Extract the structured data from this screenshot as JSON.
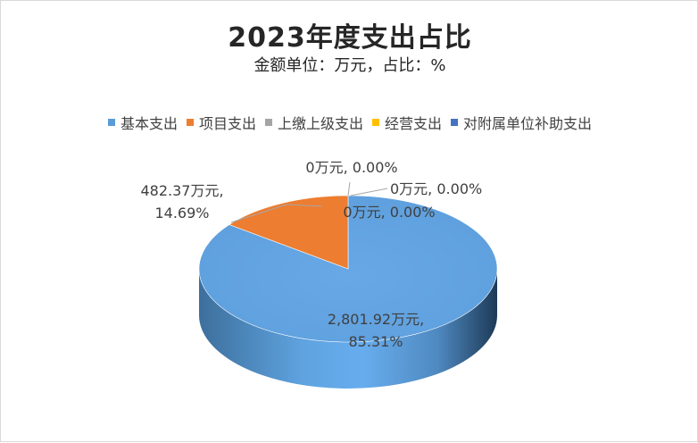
{
  "chart_data": {
    "type": "pie",
    "title": "2023年度支出占比",
    "subtitle": "金额单位：万元，占比：%",
    "legend_position": "top",
    "series": [
      {
        "name": "基本支出",
        "value": 2801.92,
        "label_value": "2,801.92万元,",
        "label_pct": "85.31%",
        "color": "#5b9bd5"
      },
      {
        "name": "项目支出",
        "value": 482.37,
        "label_value": "482.37万元,",
        "label_pct": "14.69%",
        "color": "#ed7d31"
      },
      {
        "name": "上缴上级支出",
        "value": 0,
        "label_value": "0万元,",
        "label_pct": "0.00%",
        "color": "#a5a5a5"
      },
      {
        "name": "经营支出",
        "value": 0,
        "label_value": "0万元,",
        "label_pct": "0.00%",
        "color": "#ffc000"
      },
      {
        "name": "对附属单位补助支出",
        "value": 0,
        "label_value": "0万元,",
        "label_pct": "0.00%",
        "color": "#4472c4"
      }
    ]
  }
}
